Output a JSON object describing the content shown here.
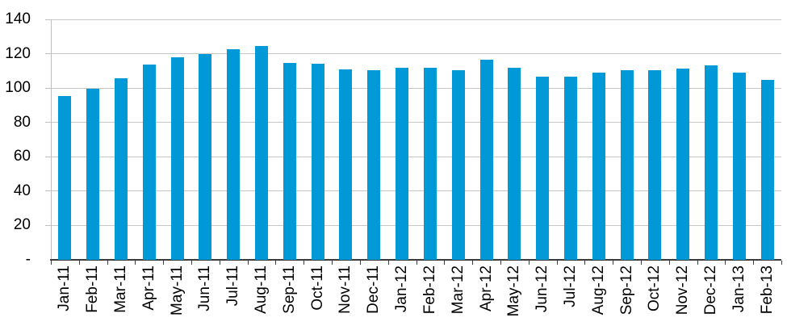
{
  "chart_data": {
    "type": "bar",
    "title": "",
    "xlabel": "",
    "ylabel": "",
    "categories": [
      "Jan-11",
      "Feb-11",
      "Mar-11",
      "Apr-11",
      "May-11",
      "Jun-11",
      "Jul-11",
      "Aug-11",
      "Sep-11",
      "Oct-11",
      "Nov-11",
      "Dec-11",
      "Jan-12",
      "Feb-12",
      "Mar-12",
      "Apr-12",
      "May-12",
      "Jun-12",
      "Jul-12",
      "Aug-12",
      "Sep-12",
      "Oct-12",
      "Nov-12",
      "Dec-12",
      "Jan-13",
      "Feb-13"
    ],
    "values": [
      95.5,
      99.5,
      105.5,
      113.5,
      118,
      120,
      122.5,
      124.5,
      114.5,
      114,
      111,
      110.5,
      112,
      112,
      110.5,
      116.5,
      112,
      106.5,
      106.5,
      109,
      110.5,
      110.5,
      111.5,
      113,
      109,
      105
    ],
    "ylim": [
      0,
      140
    ],
    "ytick_interval": 20,
    "ytick_labels": [
      "-",
      "20",
      "40",
      "60",
      "80",
      "100",
      "120",
      "140"
    ],
    "grid": true,
    "legend": false,
    "colors": {
      "bar": "#0099D8",
      "gridline": "#C6C6C6",
      "y_axis": "#BFBFBF",
      "x_axis": "#3B3B3B",
      "text": "#000000",
      "background": "#FFFFFF"
    }
  }
}
